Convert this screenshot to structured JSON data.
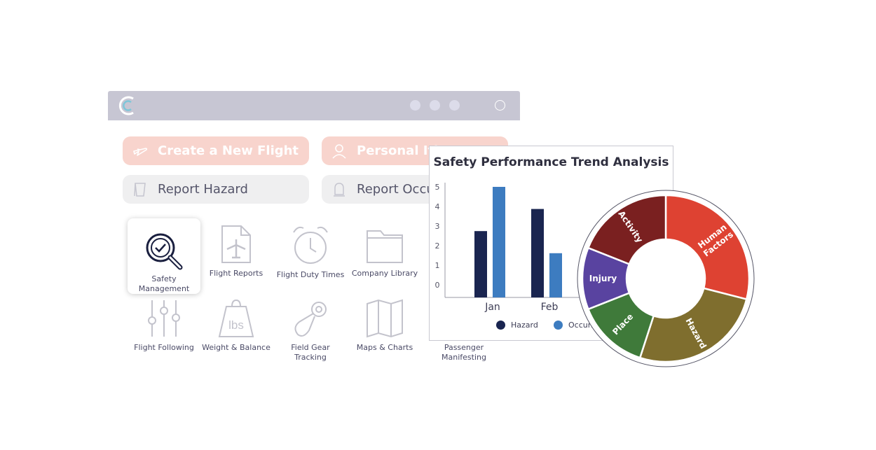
{
  "window": {
    "title_dots": [
      "",
      "",
      ""
    ]
  },
  "actions": [
    {
      "label": "Create a New Flight",
      "icon": "airplane-icon",
      "style": "pink"
    },
    {
      "label": "Personal Iti",
      "icon": "person-icon",
      "style": "pink"
    },
    {
      "label": "Report Hazard",
      "icon": "warning-flag-icon",
      "style": "gray"
    },
    {
      "label": "Report Occu",
      "icon": "bell-icon",
      "style": "gray"
    }
  ],
  "apps": [
    {
      "label": "Safety Management",
      "icon": "magnifier-check-icon"
    },
    {
      "label": "Flight Reports",
      "icon": "document-airplane-icon"
    },
    {
      "label": "Flight Duty Times",
      "icon": "alarm-clock-icon"
    },
    {
      "label": "Company Library",
      "icon": "folder-icon"
    },
    {
      "label": "Flight Following",
      "icon": "sliders-icon"
    },
    {
      "label": "Weight & Balance",
      "icon": "weight-lbs-icon"
    },
    {
      "label": "Field Gear Tracking",
      "icon": "gear-tag-icon"
    },
    {
      "label": "Maps & Charts",
      "icon": "map-icon"
    },
    {
      "label": "Passenger Manifesting",
      "icon": "manifest-icon"
    }
  ],
  "chart_data": [
    {
      "type": "bar",
      "title": "Safety Performance Trend Analysis",
      "categories": [
        "Jan",
        "Feb"
      ],
      "series": [
        {
          "name": "Hazard",
          "values": [
            3,
            4
          ],
          "color": "#1a2550"
        },
        {
          "name": "Occurren",
          "values": [
            5,
            2
          ],
          "color": "#3d7cc0"
        }
      ],
      "ylim": [
        0,
        5
      ],
      "yticks": [
        "0",
        "1",
        "2",
        "3",
        "4",
        "5"
      ],
      "legend": "bottom"
    },
    {
      "type": "pie",
      "variant": "donut",
      "slices": [
        {
          "label": "Human Factors",
          "value": 29,
          "color": "#de4232"
        },
        {
          "label": "Hazard",
          "value": 26,
          "color": "#7f6e2e"
        },
        {
          "label": "Place",
          "value": 14,
          "color": "#3f7a3a"
        },
        {
          "label": "Injury",
          "value": 12,
          "color": "#5943a0"
        },
        {
          "label": "Activity",
          "value": 19,
          "color": "#7a2020"
        }
      ]
    }
  ]
}
